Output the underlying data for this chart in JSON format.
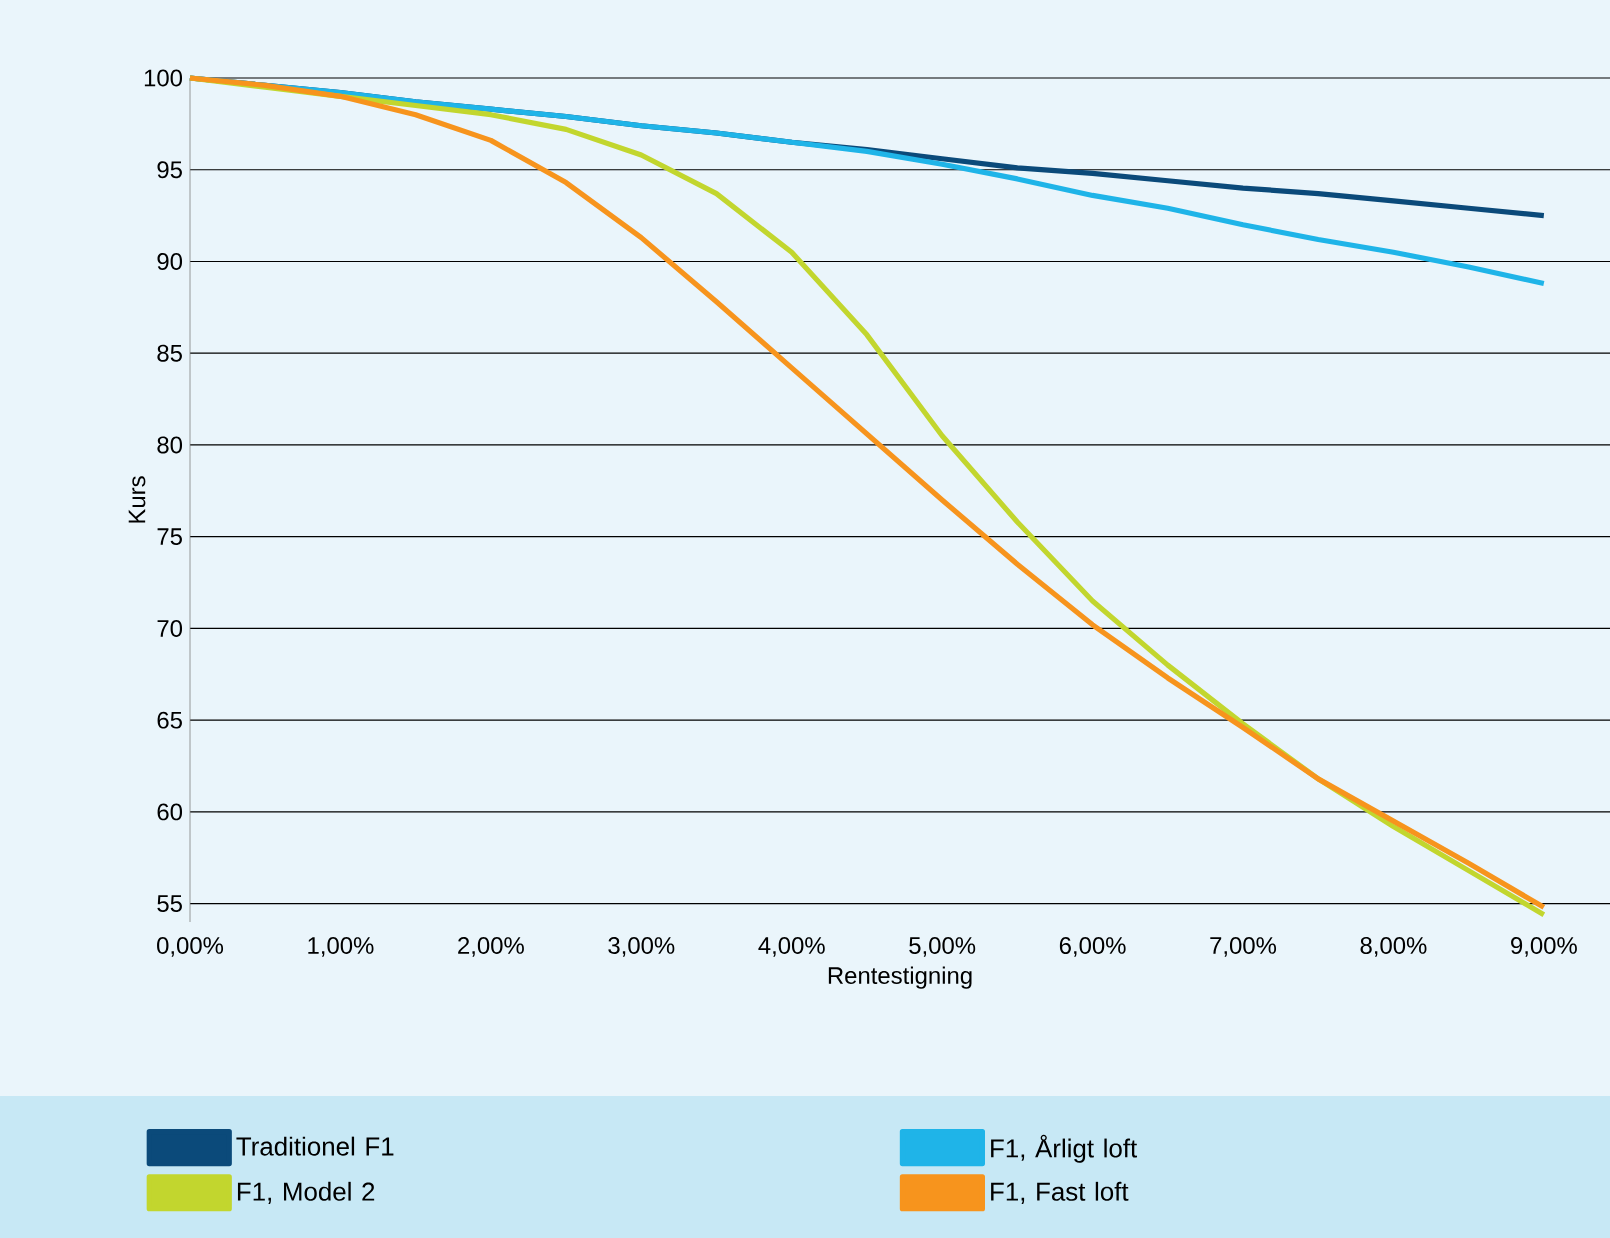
{
  "chart_data": {
    "type": "line",
    "xlabel": "Rentestigning",
    "ylabel": "Kurs",
    "x": [
      0,
      0.5,
      1,
      1.5,
      2,
      2.5,
      3,
      3.5,
      4,
      4.5,
      5,
      5.5,
      6,
      6.5,
      7,
      7.5,
      8,
      8.5,
      9
    ],
    "series": [
      {
        "name": "Traditionel F1",
        "color": "#0b4a7a",
        "values": [
          100,
          99.6,
          99.2,
          98.7,
          98.3,
          97.9,
          97.4,
          97.0,
          96.5,
          96.1,
          95.6,
          95.1,
          94.8,
          94.4,
          94.0,
          93.7,
          93.3,
          92.9,
          92.5
        ]
      },
      {
        "name": "F1, Årligt loft",
        "color": "#1fb4e8",
        "values": [
          100,
          99.6,
          99.2,
          98.7,
          98.3,
          97.9,
          97.4,
          97.0,
          96.5,
          96.0,
          95.3,
          94.5,
          93.6,
          92.9,
          92.0,
          91.2,
          90.5,
          89.7,
          88.8
        ]
      },
      {
        "name": "F1, Model 2",
        "color": "#c2d62e",
        "values": [
          100,
          99.5,
          99.0,
          98.5,
          98.0,
          97.2,
          95.8,
          93.7,
          90.5,
          86.0,
          80.5,
          75.8,
          71.5,
          68.0,
          64.8,
          61.8,
          59.2,
          56.8,
          54.4
        ]
      },
      {
        "name": "F1, Fast loft",
        "color": "#f7941d",
        "values": [
          100,
          99.6,
          99.0,
          98.0,
          96.6,
          94.3,
          91.3,
          87.8,
          84.2,
          80.6,
          77.0,
          73.5,
          70.2,
          67.3,
          64.6,
          61.8,
          59.5,
          57.2,
          54.8
        ]
      }
    ],
    "xlim": [
      0,
      9.44
    ],
    "ylim": [
      54,
      100
    ],
    "xticks": [
      {
        "value": 0,
        "label": "0,00%"
      },
      {
        "value": 1,
        "label": "1,00%"
      },
      {
        "value": 2,
        "label": "2,00%"
      },
      {
        "value": 3,
        "label": "3,00%"
      },
      {
        "value": 4,
        "label": "4,00%"
      },
      {
        "value": 5,
        "label": "5,00%"
      },
      {
        "value": 6,
        "label": "6,00%"
      },
      {
        "value": 7,
        "label": "7,00%"
      },
      {
        "value": 8,
        "label": "8,00%"
      },
      {
        "value": 9,
        "label": "9,00%"
      }
    ],
    "yticks": [
      55,
      60,
      65,
      70,
      75,
      80,
      85,
      90,
      95,
      100
    ],
    "grid": "y",
    "legend": "bottom",
    "marker": "none",
    "line_style": "solid"
  }
}
